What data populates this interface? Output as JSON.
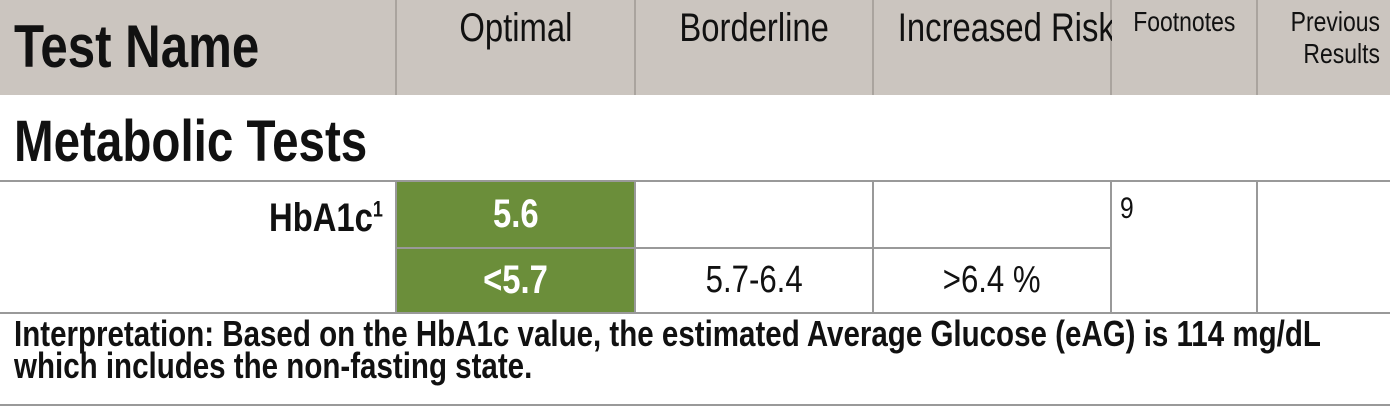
{
  "header": {
    "columns": [
      "Test Name",
      "Optimal",
      "Borderline",
      "Increased Risk",
      "Footnotes",
      "Previous Results"
    ]
  },
  "section": {
    "title": "Metabolic Tests"
  },
  "rows": [
    {
      "test": "HbA1c",
      "test_footnote": "1",
      "result": "5.6",
      "optimal": "<5.7",
      "borderline": "5.7-6.4",
      "increased_risk": ">6.4 %",
      "footnotes": "9"
    }
  ],
  "interpretation": "Interpretation: Based on the HbA1c value, the estimated Average Glucose (eAG) is 114 mg/dL which includes the non-fasting state."
}
